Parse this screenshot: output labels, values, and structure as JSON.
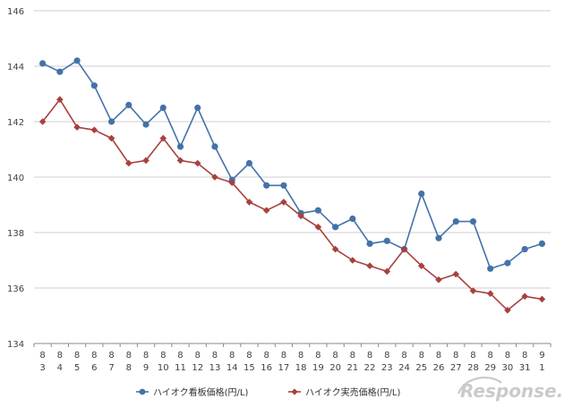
{
  "chart_data": {
    "type": "line",
    "x_dates": [
      {
        "month": "8",
        "day": "3"
      },
      {
        "month": "8",
        "day": "4"
      },
      {
        "month": "8",
        "day": "5"
      },
      {
        "month": "8",
        "day": "6"
      },
      {
        "month": "8",
        "day": "7"
      },
      {
        "month": "8",
        "day": "8"
      },
      {
        "month": "8",
        "day": "9"
      },
      {
        "month": "8",
        "day": "10"
      },
      {
        "month": "8",
        "day": "11"
      },
      {
        "month": "8",
        "day": "12"
      },
      {
        "month": "8",
        "day": "13"
      },
      {
        "month": "8",
        "day": "14"
      },
      {
        "month": "8",
        "day": "15"
      },
      {
        "month": "8",
        "day": "16"
      },
      {
        "month": "8",
        "day": "17"
      },
      {
        "month": "8",
        "day": "18"
      },
      {
        "month": "8",
        "day": "19"
      },
      {
        "month": "8",
        "day": "20"
      },
      {
        "month": "8",
        "day": "21"
      },
      {
        "month": "8",
        "day": "22"
      },
      {
        "month": "8",
        "day": "23"
      },
      {
        "month": "8",
        "day": "24"
      },
      {
        "month": "8",
        "day": "25"
      },
      {
        "month": "8",
        "day": "26"
      },
      {
        "month": "8",
        "day": "27"
      },
      {
        "month": "8",
        "day": "28"
      },
      {
        "month": "8",
        "day": "29"
      },
      {
        "month": "8",
        "day": "30"
      },
      {
        "month": "8",
        "day": "31"
      },
      {
        "month": "9",
        "day": "1"
      }
    ],
    "series": [
      {
        "name": "ハイオク看板価格(円/L)",
        "color": "#4472a8",
        "marker": "circle",
        "values": [
          144.1,
          143.8,
          144.2,
          143.3,
          142.0,
          142.6,
          141.9,
          142.5,
          141.1,
          142.5,
          141.1,
          139.9,
          140.5,
          139.7,
          139.7,
          138.7,
          138.8,
          138.2,
          138.5,
          137.6,
          137.7,
          137.4,
          139.4,
          137.8,
          138.4,
          138.4,
          136.7,
          136.9,
          137.4,
          137.6
        ]
      },
      {
        "name": "ハイオク実売価格(円/L)",
        "color": "#a8413e",
        "marker": "diamond",
        "values": [
          142.0,
          142.8,
          141.8,
          141.7,
          141.4,
          140.5,
          140.6,
          141.4,
          140.6,
          140.5,
          140.0,
          139.8,
          139.1,
          138.8,
          139.1,
          138.6,
          138.2,
          137.4,
          137.0,
          136.8,
          136.6,
          137.4,
          136.8,
          136.3,
          136.5,
          135.9,
          135.8,
          135.2,
          135.7,
          135.6
        ]
      }
    ],
    "y_ticks": [
      134,
      136,
      138,
      140,
      142,
      144,
      146
    ],
    "ylim": [
      134,
      146
    ],
    "grid": "horizontal",
    "legend_position": "bottom",
    "watermark": "Response."
  }
}
